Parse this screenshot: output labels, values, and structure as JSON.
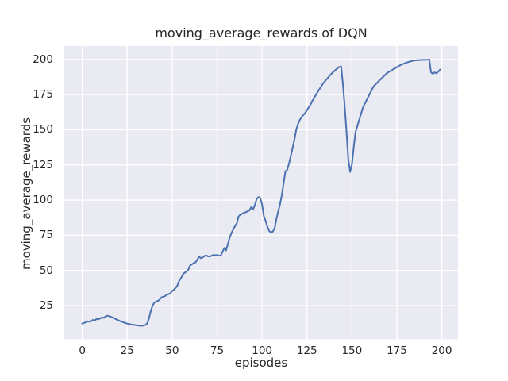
{
  "chart_data": {
    "type": "line",
    "title": "moving_average_rewards of DQN",
    "xlabel": "episodes",
    "ylabel": "moving_average_rewards",
    "xlim": [
      -10,
      209
    ],
    "ylim": [
      1,
      209.5
    ],
    "xticks": [
      0,
      25,
      50,
      75,
      100,
      125,
      150,
      175,
      200
    ],
    "yticks": [
      25,
      50,
      75,
      100,
      125,
      150,
      175,
      200
    ],
    "grid": true,
    "legend": false,
    "style": {
      "figure_bg": "#ffffff",
      "axes_bg": "#eaeaf2",
      "grid_color": "#ffffff",
      "line_color": "#4c72b0",
      "text_color": "#262626",
      "line_width": 2
    },
    "series": [
      {
        "name": "moving_average_rewards",
        "points": [
          [
            0,
            12.2
          ],
          [
            1,
            12.7
          ],
          [
            2,
            13.2
          ],
          [
            3,
            13.8
          ],
          [
            4,
            13.5
          ],
          [
            5,
            14.0
          ],
          [
            6,
            14.8
          ],
          [
            7,
            14.3
          ],
          [
            8,
            15.6
          ],
          [
            9,
            15.2
          ],
          [
            10,
            15.9
          ],
          [
            11,
            16.7
          ],
          [
            12,
            16.3
          ],
          [
            13,
            17.3
          ],
          [
            14,
            17.8
          ],
          [
            15,
            17.4
          ],
          [
            16,
            17.0
          ],
          [
            17,
            16.4
          ],
          [
            18,
            15.8
          ],
          [
            19,
            15.2
          ],
          [
            20,
            14.6
          ],
          [
            21,
            14.0
          ],
          [
            22,
            13.5
          ],
          [
            23,
            13.0
          ],
          [
            24,
            12.6
          ],
          [
            25,
            12.2
          ],
          [
            26,
            11.9
          ],
          [
            27,
            11.6
          ],
          [
            28,
            11.4
          ],
          [
            29,
            11.2
          ],
          [
            30,
            11.0
          ],
          [
            31,
            10.8
          ],
          [
            32,
            10.7
          ],
          [
            33,
            10.6
          ],
          [
            34,
            10.8
          ],
          [
            35,
            11.2
          ],
          [
            36,
            12.1
          ],
          [
            37,
            15.3
          ],
          [
            38,
            20.6
          ],
          [
            39,
            24.6
          ],
          [
            40,
            27.0
          ],
          [
            41,
            27.8
          ],
          [
            42,
            28.3
          ],
          [
            43,
            29.1
          ],
          [
            44,
            30.8
          ],
          [
            45,
            31.3
          ],
          [
            46,
            31.7
          ],
          [
            47,
            32.7
          ],
          [
            48,
            33.1
          ],
          [
            49,
            33.6
          ],
          [
            50,
            35.4
          ],
          [
            51,
            36.3
          ],
          [
            52,
            37.5
          ],
          [
            53,
            39.6
          ],
          [
            54,
            42.8
          ],
          [
            55,
            44.6
          ],
          [
            56,
            47.2
          ],
          [
            57,
            48.4
          ],
          [
            58,
            49.2
          ],
          [
            59,
            50.6
          ],
          [
            60,
            53.5
          ],
          [
            61,
            54.4
          ],
          [
            62,
            55.3
          ],
          [
            63,
            55.7
          ],
          [
            64,
            57.6
          ],
          [
            65,
            59.8
          ],
          [
            66,
            58.6
          ],
          [
            67,
            59.3
          ],
          [
            68,
            60.3
          ],
          [
            69,
            60.6
          ],
          [
            70,
            60.0
          ],
          [
            71,
            59.9
          ],
          [
            72,
            60.5
          ],
          [
            73,
            61.0
          ],
          [
            74,
            60.8
          ],
          [
            75,
            61.0
          ],
          [
            76,
            60.6
          ],
          [
            77,
            60.4
          ],
          [
            78,
            63.0
          ],
          [
            79,
            66.0
          ],
          [
            80,
            64.2
          ],
          [
            81,
            68.8
          ],
          [
            82,
            73.5
          ],
          [
            83,
            76.5
          ],
          [
            84,
            79.3
          ],
          [
            85,
            81.5
          ],
          [
            86,
            83.6
          ],
          [
            87,
            88.5
          ],
          [
            88,
            89.6
          ],
          [
            89,
            90.4
          ],
          [
            90,
            91.0
          ],
          [
            91,
            91.4
          ],
          [
            92,
            92.0
          ],
          [
            93,
            92.7
          ],
          [
            94,
            95.0
          ],
          [
            95,
            93.3
          ],
          [
            96,
            96.5
          ],
          [
            97,
            100.7
          ],
          [
            98,
            102.2
          ],
          [
            99,
            101.4
          ],
          [
            100,
            97.0
          ],
          [
            101,
            88.5
          ],
          [
            102,
            85.0
          ],
          [
            103,
            81.0
          ],
          [
            104,
            78.0
          ],
          [
            105,
            76.9
          ],
          [
            106,
            77.6
          ],
          [
            107,
            80.0
          ],
          [
            108,
            86.7
          ],
          [
            109,
            92.0
          ],
          [
            110,
            97.0
          ],
          [
            111,
            103.5
          ],
          [
            112,
            112.0
          ],
          [
            113,
            120.5
          ],
          [
            114,
            121.5
          ],
          [
            115,
            126.0
          ],
          [
            116,
            131.5
          ],
          [
            117,
            137.0
          ],
          [
            118,
            143.0
          ],
          [
            119,
            150.0
          ],
          [
            120,
            154.0
          ],
          [
            121,
            157.0
          ],
          [
            122,
            159.0
          ],
          [
            123,
            160.5
          ],
          [
            124,
            162.0
          ],
          [
            125,
            164.0
          ],
          [
            126,
            166.0
          ],
          [
            127,
            168.0
          ],
          [
            128,
            170.5
          ],
          [
            129,
            172.5
          ],
          [
            130,
            175.0
          ],
          [
            131,
            177.0
          ],
          [
            132,
            179.0
          ],
          [
            133,
            181.0
          ],
          [
            134,
            183.0
          ],
          [
            135,
            184.5
          ],
          [
            136,
            186.0
          ],
          [
            137,
            187.5
          ],
          [
            138,
            189.0
          ],
          [
            139,
            190.3
          ],
          [
            140,
            191.5
          ],
          [
            141,
            192.7
          ],
          [
            142,
            193.7
          ],
          [
            143,
            194.7
          ],
          [
            144,
            195.0
          ],
          [
            145,
            182.0
          ],
          [
            146,
            166.5
          ],
          [
            147,
            148.0
          ],
          [
            148,
            129.0
          ],
          [
            149,
            120.0
          ],
          [
            150,
            125.5
          ],
          [
            151,
            137.5
          ],
          [
            152,
            148.3
          ],
          [
            153,
            152.6
          ],
          [
            154,
            156.8
          ],
          [
            155,
            161.0
          ],
          [
            156,
            165.4
          ],
          [
            157,
            168.1
          ],
          [
            158,
            170.6
          ],
          [
            159,
            173.2
          ],
          [
            160,
            175.7
          ],
          [
            161,
            178.3
          ],
          [
            162,
            180.8
          ],
          [
            163,
            182.1
          ],
          [
            164,
            183.3
          ],
          [
            165,
            184.6
          ],
          [
            166,
            185.9
          ],
          [
            167,
            187.2
          ],
          [
            168,
            188.4
          ],
          [
            169,
            189.7
          ],
          [
            170,
            190.7
          ],
          [
            171,
            191.4
          ],
          [
            172,
            192.2
          ],
          [
            173,
            193.0
          ],
          [
            174,
            193.7
          ],
          [
            175,
            194.5
          ],
          [
            176,
            195.2
          ],
          [
            177,
            196.0
          ],
          [
            178,
            196.6
          ],
          [
            179,
            197.1
          ],
          [
            180,
            197.6
          ],
          [
            181,
            198.0
          ],
          [
            182,
            198.4
          ],
          [
            183,
            198.8
          ],
          [
            184,
            199.1
          ],
          [
            185,
            199.3
          ],
          [
            186,
            199.4
          ],
          [
            187,
            199.5
          ],
          [
            188,
            199.6
          ],
          [
            189,
            199.6
          ],
          [
            190,
            199.7
          ],
          [
            191,
            199.7
          ],
          [
            192,
            199.8
          ],
          [
            193,
            200.0
          ],
          [
            194,
            190.8
          ],
          [
            195,
            189.8
          ],
          [
            196,
            190.8
          ],
          [
            197,
            190.1
          ],
          [
            198,
            191.3
          ],
          [
            199,
            192.8
          ]
        ]
      }
    ]
  }
}
